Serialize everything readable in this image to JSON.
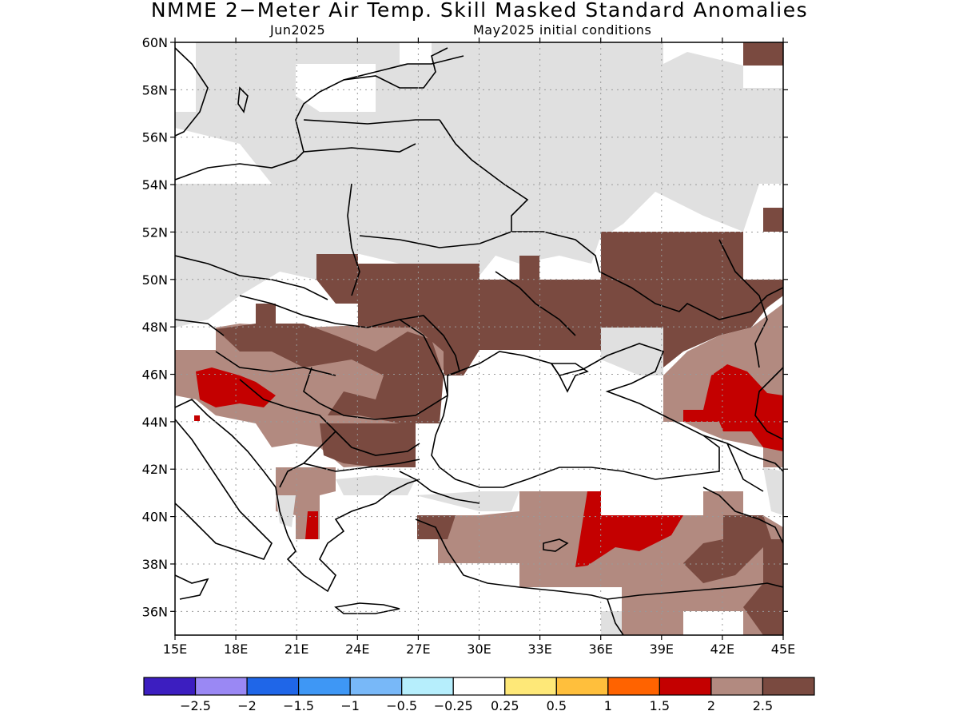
{
  "title": "NMME 2−Meter Air Temp. Skill Masked Standard Anomalies",
  "subtitle_left": "Jun2025",
  "subtitle_right": "May2025 initial conditions",
  "map": {
    "lon_range": [
      15,
      45
    ],
    "lat_range": [
      35,
      60
    ],
    "lon_ticks": [
      "15E",
      "18E",
      "21E",
      "24E",
      "27E",
      "30E",
      "33E",
      "36E",
      "39E",
      "42E",
      "45E"
    ],
    "lat_ticks": [
      "60N",
      "58N",
      "56N",
      "54N",
      "52N",
      "50N",
      "48N",
      "46N",
      "44N",
      "42N",
      "40N",
      "38N",
      "36N"
    ],
    "grid_lines": "dotted"
  },
  "legend": {
    "colors": [
      "#3c1ec0",
      "#9a88f4",
      "#1f66e8",
      "#3e97f5",
      "#78b8f8",
      "#b6eefc",
      "#ffffff",
      "#fee878",
      "#ffbf3c",
      "#ff6300",
      "#c40000",
      "#b28a80",
      "#7a4a40"
    ],
    "labels": [
      "−2.5",
      "−2",
      "−1.5",
      "−1",
      "−0.5",
      "−0.25",
      "0.25",
      "0.5",
      "1",
      "1.5",
      "2",
      "2.5"
    ]
  },
  "palette": {
    "masked_gray": "#e0e0e0",
    "anom_2_to_2_5": "#b28a80",
    "anom_above_2_5": "#7a4a40",
    "anom_1_5_to_2": "#c40000"
  }
}
